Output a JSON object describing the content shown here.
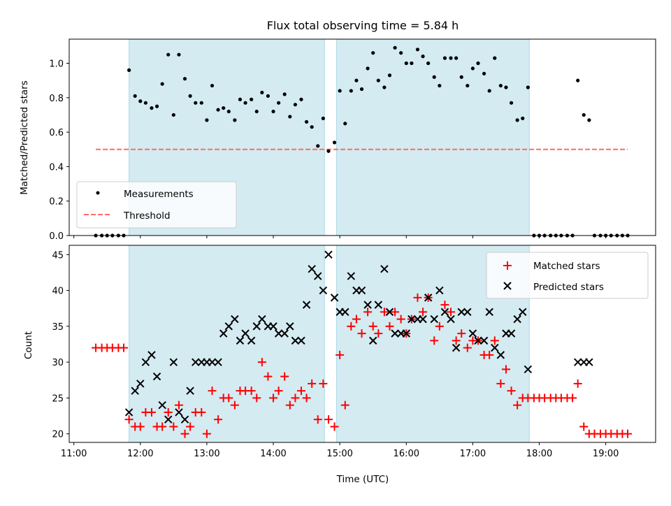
{
  "chart_data": {
    "type": "scatter",
    "title": "Flux total observing time = 5.84 h",
    "xlabel": "Time (UTC)",
    "x_unit": "hours UTC",
    "xlim": [
      10.93,
      19.75
    ],
    "x_ticks": [
      {
        "v": 11,
        "label": "11:00"
      },
      {
        "v": 12,
        "label": "12:00"
      },
      {
        "v": 13,
        "label": "13:00"
      },
      {
        "v": 14,
        "label": "14:00"
      },
      {
        "v": 15,
        "label": "15:00"
      },
      {
        "v": 16,
        "label": "16:00"
      },
      {
        "v": 17,
        "label": "17:00"
      },
      {
        "v": 18,
        "label": "18:00"
      },
      {
        "v": 19,
        "label": "19:00"
      }
    ],
    "observing_windows": [
      [
        11.83,
        14.77
      ],
      [
        14.95,
        17.85
      ]
    ],
    "window_color": "#add8e6",
    "top": {
      "ylabel": "Matched/Predicted stars",
      "ylim": [
        0,
        1.14
      ],
      "y_ticks": [
        {
          "v": 0,
          "label": "0.0"
        },
        {
          "v": 0.2,
          "label": "0.2"
        },
        {
          "v": 0.4,
          "label": "0.4"
        },
        {
          "v": 0.6,
          "label": "0.6"
        },
        {
          "v": 0.8,
          "label": "0.8"
        },
        {
          "v": 1.0,
          "label": "1.0"
        }
      ],
      "threshold": {
        "value": 0.5,
        "x_range": [
          11.33,
          19.33
        ],
        "color": "#ff6b6b",
        "label": "Threshold"
      },
      "measurements_label": "Measurements",
      "measurements": [
        [
          11.33,
          0
        ],
        [
          11.42,
          0
        ],
        [
          11.5,
          0
        ],
        [
          11.58,
          0
        ],
        [
          11.67,
          0
        ],
        [
          11.75,
          0
        ],
        [
          11.83,
          0.96
        ],
        [
          11.92,
          0.81
        ],
        [
          12.0,
          0.78
        ],
        [
          12.08,
          0.77
        ],
        [
          12.17,
          0.74
        ],
        [
          12.25,
          0.75
        ],
        [
          12.33,
          0.88
        ],
        [
          12.42,
          1.05
        ],
        [
          12.5,
          0.7
        ],
        [
          12.58,
          1.05
        ],
        [
          12.67,
          0.91
        ],
        [
          12.75,
          0.81
        ],
        [
          12.83,
          0.77
        ],
        [
          12.92,
          0.77
        ],
        [
          13.0,
          0.67
        ],
        [
          13.08,
          0.87
        ],
        [
          13.17,
          0.73
        ],
        [
          13.25,
          0.74
        ],
        [
          13.33,
          0.72
        ],
        [
          13.42,
          0.67
        ],
        [
          13.5,
          0.79
        ],
        [
          13.58,
          0.77
        ],
        [
          13.67,
          0.79
        ],
        [
          13.75,
          0.72
        ],
        [
          13.83,
          0.83
        ],
        [
          13.92,
          0.81
        ],
        [
          14.0,
          0.72
        ],
        [
          14.08,
          0.77
        ],
        [
          14.17,
          0.82
        ],
        [
          14.25,
          0.69
        ],
        [
          14.33,
          0.76
        ],
        [
          14.42,
          0.79
        ],
        [
          14.5,
          0.66
        ],
        [
          14.58,
          0.63
        ],
        [
          14.67,
          0.52
        ],
        [
          14.75,
          0.68
        ],
        [
          14.83,
          0.49
        ],
        [
          14.92,
          0.54
        ],
        [
          15.0,
          0.84
        ],
        [
          15.08,
          0.65
        ],
        [
          15.17,
          0.84
        ],
        [
          15.25,
          0.9
        ],
        [
          15.33,
          0.85
        ],
        [
          15.42,
          0.97
        ],
        [
          15.5,
          1.06
        ],
        [
          15.58,
          0.9
        ],
        [
          15.67,
          0.86
        ],
        [
          15.75,
          0.93
        ],
        [
          15.83,
          1.09
        ],
        [
          15.92,
          1.06
        ],
        [
          16.0,
          1.0
        ],
        [
          16.08,
          1.0
        ],
        [
          16.17,
          1.08
        ],
        [
          16.25,
          1.04
        ],
        [
          16.33,
          1.0
        ],
        [
          16.42,
          0.92
        ],
        [
          16.5,
          0.87
        ],
        [
          16.58,
          1.03
        ],
        [
          16.67,
          1.03
        ],
        [
          16.75,
          1.03
        ],
        [
          16.83,
          0.92
        ],
        [
          16.92,
          0.87
        ],
        [
          17.0,
          0.97
        ],
        [
          17.08,
          1.0
        ],
        [
          17.17,
          0.94
        ],
        [
          17.25,
          0.84
        ],
        [
          17.33,
          1.03
        ],
        [
          17.42,
          0.87
        ],
        [
          17.5,
          0.86
        ],
        [
          17.58,
          0.77
        ],
        [
          17.67,
          0.67
        ],
        [
          17.75,
          0.68
        ],
        [
          17.83,
          0.86
        ],
        [
          17.92,
          0
        ],
        [
          18.0,
          0
        ],
        [
          18.08,
          0
        ],
        [
          18.17,
          0
        ],
        [
          18.25,
          0
        ],
        [
          18.33,
          0
        ],
        [
          18.42,
          0
        ],
        [
          18.5,
          0
        ],
        [
          18.58,
          0.9
        ],
        [
          18.67,
          0.7
        ],
        [
          18.75,
          0.67
        ],
        [
          18.83,
          0
        ],
        [
          18.92,
          0
        ],
        [
          19.0,
          0
        ],
        [
          19.08,
          0
        ],
        [
          19.17,
          0
        ],
        [
          19.25,
          0
        ],
        [
          19.33,
          0
        ]
      ]
    },
    "bottom": {
      "ylabel": "Count",
      "ylim": [
        18.8,
        46.3
      ],
      "y_ticks": [
        {
          "v": 20,
          "label": "20"
        },
        {
          "v": 25,
          "label": "25"
        },
        {
          "v": 30,
          "label": "30"
        },
        {
          "v": 35,
          "label": "35"
        },
        {
          "v": 40,
          "label": "40"
        },
        {
          "v": 45,
          "label": "45"
        }
      ],
      "series": [
        {
          "name": "Matched stars",
          "marker": "plus",
          "color": "#ff0000",
          "points": [
            [
              11.33,
              32
            ],
            [
              11.42,
              32
            ],
            [
              11.5,
              32
            ],
            [
              11.58,
              32
            ],
            [
              11.67,
              32
            ],
            [
              11.75,
              32
            ],
            [
              11.83,
              22
            ],
            [
              11.92,
              21
            ],
            [
              12.0,
              21
            ],
            [
              12.08,
              23
            ],
            [
              12.17,
              23
            ],
            [
              12.25,
              21
            ],
            [
              12.33,
              21
            ],
            [
              12.42,
              23
            ],
            [
              12.5,
              21
            ],
            [
              12.58,
              24
            ],
            [
              12.67,
              20
            ],
            [
              12.75,
              21
            ],
            [
              12.83,
              23
            ],
            [
              12.92,
              23
            ],
            [
              13.0,
              20
            ],
            [
              13.08,
              26
            ],
            [
              13.17,
              22
            ],
            [
              13.25,
              25
            ],
            [
              13.33,
              25
            ],
            [
              13.42,
              24
            ],
            [
              13.5,
              26
            ],
            [
              13.58,
              26
            ],
            [
              13.67,
              26
            ],
            [
              13.75,
              25
            ],
            [
              13.83,
              30
            ],
            [
              13.92,
              28
            ],
            [
              14.0,
              25
            ],
            [
              14.08,
              26
            ],
            [
              14.17,
              28
            ],
            [
              14.25,
              24
            ],
            [
              14.33,
              25
            ],
            [
              14.42,
              26
            ],
            [
              14.5,
              25
            ],
            [
              14.58,
              27
            ],
            [
              14.67,
              22
            ],
            [
              14.75,
              27
            ],
            [
              14.83,
              22
            ],
            [
              14.92,
              21
            ],
            [
              15.0,
              31
            ],
            [
              15.08,
              24
            ],
            [
              15.17,
              35
            ],
            [
              15.25,
              36
            ],
            [
              15.33,
              34
            ],
            [
              15.42,
              37
            ],
            [
              15.5,
              35
            ],
            [
              15.58,
              34
            ],
            [
              15.67,
              37
            ],
            [
              15.75,
              35
            ],
            [
              15.83,
              37
            ],
            [
              15.92,
              36
            ],
            [
              16.0,
              34
            ],
            [
              16.08,
              36
            ],
            [
              16.17,
              39
            ],
            [
              16.25,
              37
            ],
            [
              16.33,
              39
            ],
            [
              16.42,
              33
            ],
            [
              16.5,
              35
            ],
            [
              16.58,
              38
            ],
            [
              16.67,
              37
            ],
            [
              16.75,
              33
            ],
            [
              16.83,
              34
            ],
            [
              16.92,
              32
            ],
            [
              17.0,
              33
            ],
            [
              17.08,
              33
            ],
            [
              17.17,
              31
            ],
            [
              17.25,
              31
            ],
            [
              17.33,
              33
            ],
            [
              17.42,
              27
            ],
            [
              17.5,
              29
            ],
            [
              17.58,
              26
            ],
            [
              17.67,
              24
            ],
            [
              17.75,
              25
            ],
            [
              17.83,
              25
            ],
            [
              17.92,
              25
            ],
            [
              18.0,
              25
            ],
            [
              18.08,
              25
            ],
            [
              18.17,
              25
            ],
            [
              18.25,
              25
            ],
            [
              18.33,
              25
            ],
            [
              18.42,
              25
            ],
            [
              18.5,
              25
            ],
            [
              18.58,
              27
            ],
            [
              18.67,
              21
            ],
            [
              18.75,
              20
            ],
            [
              18.83,
              20
            ],
            [
              18.92,
              20
            ],
            [
              19.0,
              20
            ],
            [
              19.08,
              20
            ],
            [
              19.17,
              20
            ],
            [
              19.25,
              20
            ],
            [
              19.33,
              20
            ]
          ]
        },
        {
          "name": "Predicted stars",
          "marker": "x",
          "color": "#000000",
          "points": [
            [
              11.83,
              23
            ],
            [
              11.92,
              26
            ],
            [
              12.0,
              27
            ],
            [
              12.08,
              30
            ],
            [
              12.17,
              31
            ],
            [
              12.25,
              28
            ],
            [
              12.33,
              24
            ],
            [
              12.42,
              22
            ],
            [
              12.5,
              30
            ],
            [
              12.58,
              23
            ],
            [
              12.67,
              22
            ],
            [
              12.75,
              26
            ],
            [
              12.83,
              30
            ],
            [
              12.92,
              30
            ],
            [
              13.0,
              30
            ],
            [
              13.08,
              30
            ],
            [
              13.17,
              30
            ],
            [
              13.25,
              34
            ],
            [
              13.33,
              35
            ],
            [
              13.42,
              36
            ],
            [
              13.5,
              33
            ],
            [
              13.58,
              34
            ],
            [
              13.67,
              33
            ],
            [
              13.75,
              35
            ],
            [
              13.83,
              36
            ],
            [
              13.92,
              35
            ],
            [
              14.0,
              35
            ],
            [
              14.08,
              34
            ],
            [
              14.17,
              34
            ],
            [
              14.25,
              35
            ],
            [
              14.33,
              33
            ],
            [
              14.42,
              33
            ],
            [
              14.5,
              38
            ],
            [
              14.58,
              43
            ],
            [
              14.67,
              42
            ],
            [
              14.75,
              40
            ],
            [
              14.83,
              45
            ],
            [
              14.92,
              39
            ],
            [
              15.0,
              37
            ],
            [
              15.08,
              37
            ],
            [
              15.17,
              42
            ],
            [
              15.25,
              40
            ],
            [
              15.33,
              40
            ],
            [
              15.42,
              38
            ],
            [
              15.5,
              33
            ],
            [
              15.58,
              38
            ],
            [
              15.67,
              43
            ],
            [
              15.75,
              37
            ],
            [
              15.83,
              34
            ],
            [
              15.92,
              34
            ],
            [
              16.0,
              34
            ],
            [
              16.08,
              36
            ],
            [
              16.17,
              36
            ],
            [
              16.25,
              36
            ],
            [
              16.33,
              39
            ],
            [
              16.42,
              36
            ],
            [
              16.5,
              40
            ],
            [
              16.58,
              37
            ],
            [
              16.67,
              36
            ],
            [
              16.75,
              32
            ],
            [
              16.83,
              37
            ],
            [
              16.92,
              37
            ],
            [
              17.0,
              34
            ],
            [
              17.08,
              33
            ],
            [
              17.17,
              33
            ],
            [
              17.25,
              37
            ],
            [
              17.33,
              32
            ],
            [
              17.42,
              31
            ],
            [
              17.5,
              34
            ],
            [
              17.58,
              34
            ],
            [
              17.67,
              36
            ],
            [
              17.75,
              37
            ],
            [
              17.83,
              29
            ],
            [
              18.58,
              30
            ],
            [
              18.67,
              30
            ],
            [
              18.75,
              30
            ]
          ]
        }
      ]
    }
  }
}
